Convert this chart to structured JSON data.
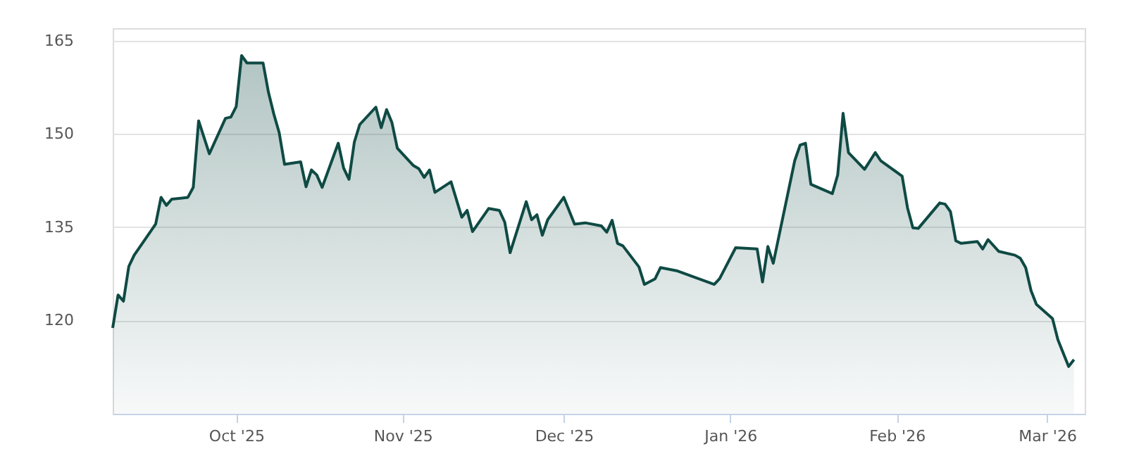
{
  "chart_data": {
    "type": "area",
    "x": [
      "2025-09-08",
      "2025-09-09",
      "2025-09-10",
      "2025-09-11",
      "2025-09-12",
      "2025-09-16",
      "2025-09-17",
      "2025-09-18",
      "2025-09-19",
      "2025-09-22",
      "2025-09-23",
      "2025-09-24",
      "2025-09-26",
      "2025-09-29",
      "2025-09-30",
      "2025-10-01",
      "2025-10-02",
      "2025-10-03",
      "2025-10-06",
      "2025-10-07",
      "2025-10-08",
      "2025-10-09",
      "2025-10-10",
      "2025-10-13",
      "2025-10-14",
      "2025-10-15",
      "2025-10-16",
      "2025-10-17",
      "2025-10-20",
      "2025-10-21",
      "2025-10-22",
      "2025-10-23",
      "2025-10-24",
      "2025-10-27",
      "2025-10-28",
      "2025-10-29",
      "2025-10-30",
      "2025-10-31",
      "2025-11-03",
      "2025-11-04",
      "2025-11-05",
      "2025-11-06",
      "2025-11-07",
      "2025-11-10",
      "2025-11-12",
      "2025-11-13",
      "2025-11-14",
      "2025-11-17",
      "2025-11-19",
      "2025-11-20",
      "2025-11-21",
      "2025-11-24",
      "2025-11-25",
      "2025-11-26",
      "2025-11-27",
      "2025-11-28",
      "2025-12-01",
      "2025-12-03",
      "2025-12-05",
      "2025-12-08",
      "2025-12-09",
      "2025-12-10",
      "2025-12-11",
      "2025-12-12",
      "2025-12-15",
      "2025-12-16",
      "2025-12-18",
      "2025-12-19",
      "2025-12-22",
      "2025-12-29",
      "2025-12-30",
      "2026-01-02",
      "2026-01-06",
      "2026-01-07",
      "2026-01-08",
      "2026-01-09",
      "2026-01-13",
      "2026-01-14",
      "2026-01-15",
      "2026-01-16",
      "2026-01-20",
      "2026-01-21",
      "2026-01-22",
      "2026-01-23",
      "2026-01-26",
      "2026-01-28",
      "2026-01-29",
      "2026-02-02",
      "2026-02-03",
      "2026-02-04",
      "2026-02-05",
      "2026-02-09",
      "2026-02-10",
      "2026-02-11",
      "2026-02-12",
      "2026-02-13",
      "2026-02-16",
      "2026-02-17",
      "2026-02-18",
      "2026-02-20",
      "2026-02-23",
      "2026-02-24",
      "2026-02-25",
      "2026-02-26",
      "2026-02-27",
      "2026-03-02",
      "2026-03-03",
      "2026-03-05",
      "2026-03-06"
    ],
    "series": [
      {
        "color": "#0f4a44",
        "values": [
          118.8,
          124.1,
          123.1,
          128.7,
          130.5,
          135.5,
          139.8,
          138.5,
          139.5,
          139.8,
          141.4,
          152.1,
          146.8,
          152.5,
          152.7,
          154.4,
          162.6,
          161.4,
          161.4,
          156.7,
          153.2,
          150.2,
          145.1,
          145.5,
          141.5,
          144.2,
          143.4,
          141.4,
          148.5,
          144.5,
          142.7,
          148.7,
          151.5,
          154.3,
          151.0,
          153.9,
          151.8,
          147.7,
          144.9,
          144.4,
          143.0,
          144.2,
          140.6,
          142.3,
          136.6,
          137.7,
          134.3,
          138.0,
          137.7,
          135.8,
          130.9,
          139.1,
          136.2,
          137.0,
          133.7,
          136.2,
          139.8,
          135.5,
          135.7,
          135.2,
          134.2,
          136.1,
          132.4,
          132.0,
          128.6,
          125.8,
          126.7,
          128.5,
          128.0,
          125.8,
          126.7,
          131.7,
          131.5,
          126.2,
          131.9,
          129.2,
          145.7,
          148.2,
          148.5,
          141.9,
          140.4,
          143.4,
          153.3,
          147.0,
          144.3,
          147.0,
          145.7,
          143.2,
          138.1,
          134.9,
          134.8,
          138.9,
          138.7,
          137.5,
          132.8,
          132.4,
          132.7,
          131.5,
          133.0,
          131.1,
          130.5,
          130.0,
          128.5,
          124.8,
          122.6,
          120.3,
          116.9,
          112.6,
          113.7
        ]
      }
    ],
    "xlim": [
      "2025-09-08",
      "2026-03-08"
    ],
    "xticks": [
      {
        "value": "2025-10-01",
        "label": "Oct '25"
      },
      {
        "value": "2025-11-01",
        "label": "Nov '25"
      },
      {
        "value": "2025-12-01",
        "label": "Dec '25"
      },
      {
        "value": "2026-01-01",
        "label": "Jan '26"
      },
      {
        "value": "2026-02-01",
        "label": "Feb '26"
      },
      {
        "value": "2026-03-01",
        "label": "Mar '26"
      }
    ],
    "ylim": [
      105,
      167
    ],
    "yticks": [
      120,
      135,
      150,
      165
    ],
    "grid": "y",
    "line_style": "solid"
  }
}
